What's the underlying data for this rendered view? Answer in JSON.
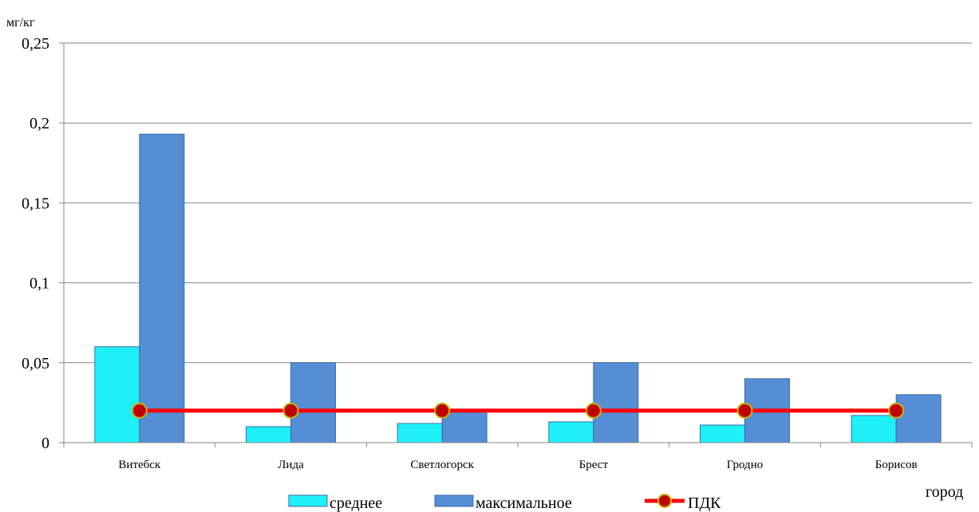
{
  "chart_data": {
    "type": "bar",
    "ylabel": "мг/кг",
    "xlabel": "город",
    "categories": [
      "Витебск",
      "Лида",
      "Светлогорск",
      "Брест",
      "Гродно",
      "Борисов"
    ],
    "ylim": [
      0,
      0.25
    ],
    "yticks": [
      0,
      0.05,
      0.1,
      0.15,
      0.2,
      0.25
    ],
    "ytick_labels": [
      "0",
      "0,05",
      "0,1",
      "0,15",
      "0,2",
      "0,25"
    ],
    "grid": true,
    "legend_position": "bottom",
    "series": [
      {
        "name": "среднее",
        "kind": "bar",
        "color": "#1ff0f8",
        "values": [
          0.06,
          0.01,
          0.012,
          0.013,
          0.011,
          0.017
        ]
      },
      {
        "name": "максимальное",
        "kind": "bar",
        "color": "#558ed5",
        "values": [
          0.193,
          0.05,
          0.02,
          0.05,
          0.04,
          0.03
        ]
      },
      {
        "name": "ПДК",
        "kind": "line",
        "color": "#ff0000",
        "marker_color": "#c00000",
        "values": [
          0.02,
          0.02,
          0.02,
          0.02,
          0.02,
          0.02
        ]
      }
    ]
  }
}
